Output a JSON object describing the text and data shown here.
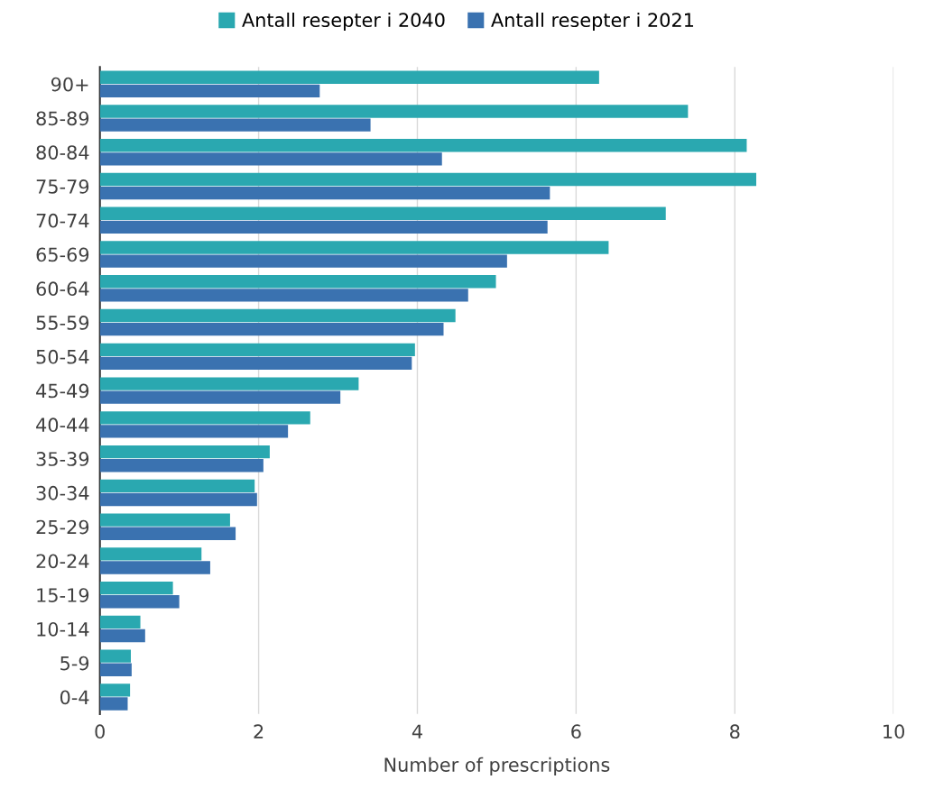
{
  "chart_data": {
    "type": "bar",
    "orientation": "horizontal",
    "xlabel": "Number of prescriptions",
    "categories": [
      "90+",
      "85-89",
      "80-84",
      "75-79",
      "70-74",
      "65-69",
      "60-64",
      "55-59",
      "50-54",
      "45-49",
      "40-44",
      "35-39",
      "30-34",
      "25-29",
      "20-24",
      "15-19",
      "10-14",
      "5-9",
      "0-4"
    ],
    "series": [
      {
        "name": "Antall resepter i 2040",
        "color": "#2aa8b0",
        "values": [
          6.29,
          7.41,
          8.15,
          8.27,
          7.13,
          6.41,
          4.99,
          4.48,
          3.97,
          3.26,
          2.65,
          2.14,
          1.95,
          1.64,
          1.28,
          0.92,
          0.51,
          0.39,
          0.38
        ]
      },
      {
        "name": "Antall resepter i 2021",
        "color": "#3a72b0",
        "values": [
          2.77,
          3.41,
          4.31,
          5.67,
          5.64,
          5.13,
          4.64,
          4.33,
          3.93,
          3.03,
          2.37,
          2.06,
          1.98,
          1.71,
          1.39,
          1.0,
          0.57,
          0.4,
          0.35
        ]
      }
    ],
    "xlim": [
      0,
      10
    ],
    "xticks": [
      0,
      2,
      4,
      6,
      8,
      10
    ],
    "grid": "x",
    "legend": "top"
  }
}
